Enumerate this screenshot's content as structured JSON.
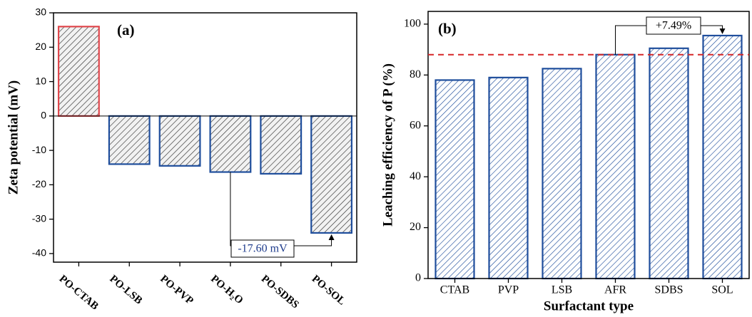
{
  "chart_data": [
    {
      "type": "bar",
      "panel_label": "(a)",
      "y_label": "Zeta potential (mV)",
      "categories": [
        "PO-CTAB",
        "PO-LSB",
        "PO-PVP",
        "PO-H₂O",
        "PO-SDBS",
        "PO-SOL"
      ],
      "values": [
        26,
        -14,
        -14.5,
        -16.3,
        -16.8,
        -34
      ],
      "colors": [
        "#e0474c",
        "#1f4e9c",
        "#1f4e9c",
        "#1f4e9c",
        "#1f4e9c",
        "#1f4e9c"
      ],
      "ylim": [
        -42.5,
        30
      ],
      "yticks": [
        30,
        20,
        10,
        0,
        -10,
        -20,
        -30,
        -40
      ],
      "annotation": "-17.60 mV"
    },
    {
      "type": "bar",
      "panel_label": "(b)",
      "y_label": "Leaching efficiency of P (%)",
      "x_label": "Surfactant type",
      "categories": [
        "CTAB",
        "PVP",
        "LSB",
        "AFR",
        "SDBS",
        "SOL"
      ],
      "values": [
        78,
        79,
        82.5,
        88,
        90.5,
        95.5
      ],
      "colors": [
        "#1f4e9c",
        "#1f4e9c",
        "#1f4e9c",
        "#1f4e9c",
        "#1f4e9c",
        "#1f4e9c"
      ],
      "ylim": [
        0,
        105
      ],
      "yticks": [
        0,
        20,
        40,
        60,
        80,
        100
      ],
      "reference_line": 88,
      "reference_color": "#d62728",
      "annotation": "+7.49%"
    }
  ]
}
